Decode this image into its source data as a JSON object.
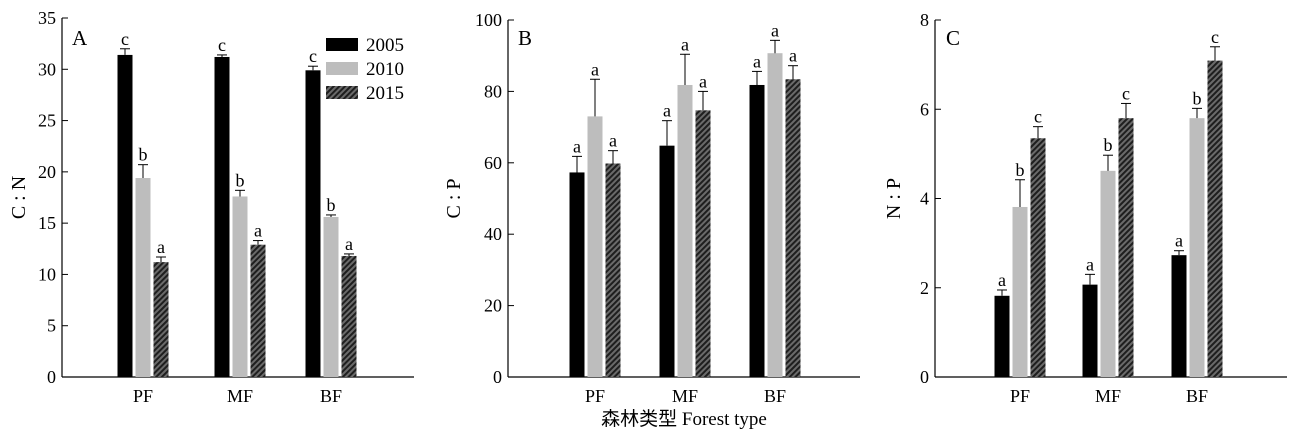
{
  "figure": {
    "xlabel": "森林类型 Forest type"
  },
  "legend": {
    "entries": [
      "2005",
      "2010",
      "2015"
    ]
  },
  "series_style": {
    "2005": {
      "color": "#000000",
      "pattern": "solid"
    },
    "2010": {
      "color": "#bdbdbd",
      "pattern": "solid"
    },
    "2015": {
      "color": "#3a3a3a",
      "pattern": "diagonal-hatch"
    }
  },
  "chart_data": [
    {
      "type": "bar",
      "panel": "A",
      "ylabel": "C : N",
      "ylim": [
        0,
        35
      ],
      "yticks": [
        0,
        5,
        10,
        15,
        20,
        25,
        30,
        35
      ],
      "categories": [
        "PF",
        "MF",
        "BF"
      ],
      "series": [
        {
          "name": "2005",
          "values": [
            31.4,
            31.2,
            29.9
          ],
          "errors": [
            0.6,
            0.2,
            0.4
          ],
          "letters": [
            "c",
            "c",
            "c"
          ]
        },
        {
          "name": "2010",
          "values": [
            19.4,
            17.6,
            15.6
          ],
          "errors": [
            1.3,
            0.6,
            0.2
          ],
          "letters": [
            "b",
            "b",
            "b"
          ]
        },
        {
          "name": "2015",
          "values": [
            11.2,
            12.9,
            11.8
          ],
          "errors": [
            0.5,
            0.4,
            0.2
          ],
          "letters": [
            "a",
            "a",
            "a"
          ]
        }
      ]
    },
    {
      "type": "bar",
      "panel": "B",
      "ylabel": "C : P",
      "ylim": [
        0,
        100
      ],
      "yticks": [
        0,
        20,
        40,
        60,
        80,
        100
      ],
      "categories": [
        "PF",
        "MF",
        "BF"
      ],
      "series": [
        {
          "name": "2005",
          "values": [
            57.3,
            64.8,
            81.8
          ],
          "errors": [
            4.5,
            7.0,
            3.8
          ],
          "letters": [
            "a",
            "a",
            "a"
          ]
        },
        {
          "name": "2010",
          "values": [
            73.0,
            81.8,
            90.7
          ],
          "errors": [
            10.4,
            8.6,
            3.6
          ],
          "letters": [
            "a",
            "a",
            "a"
          ]
        },
        {
          "name": "2015",
          "values": [
            59.8,
            74.7,
            83.4
          ],
          "errors": [
            3.6,
            5.3,
            3.8
          ],
          "letters": [
            "a",
            "a",
            "a"
          ]
        }
      ]
    },
    {
      "type": "bar",
      "panel": "C",
      "ylabel": "N : P",
      "ylim": [
        0,
        8
      ],
      "yticks": [
        0,
        2,
        4,
        6,
        8
      ],
      "categories": [
        "PF",
        "MF",
        "BF"
      ],
      "series": [
        {
          "name": "2005",
          "values": [
            1.82,
            2.07,
            2.73
          ],
          "errors": [
            0.13,
            0.23,
            0.1
          ],
          "letters": [
            "a",
            "a",
            "a"
          ]
        },
        {
          "name": "2010",
          "values": [
            3.81,
            4.62,
            5.8
          ],
          "errors": [
            0.61,
            0.35,
            0.22
          ],
          "letters": [
            "b",
            "b",
            "b"
          ]
        },
        {
          "name": "2015",
          "values": [
            5.35,
            5.8,
            7.09
          ],
          "errors": [
            0.26,
            0.33,
            0.31
          ],
          "letters": [
            "c",
            "c",
            "c"
          ]
        }
      ]
    }
  ]
}
